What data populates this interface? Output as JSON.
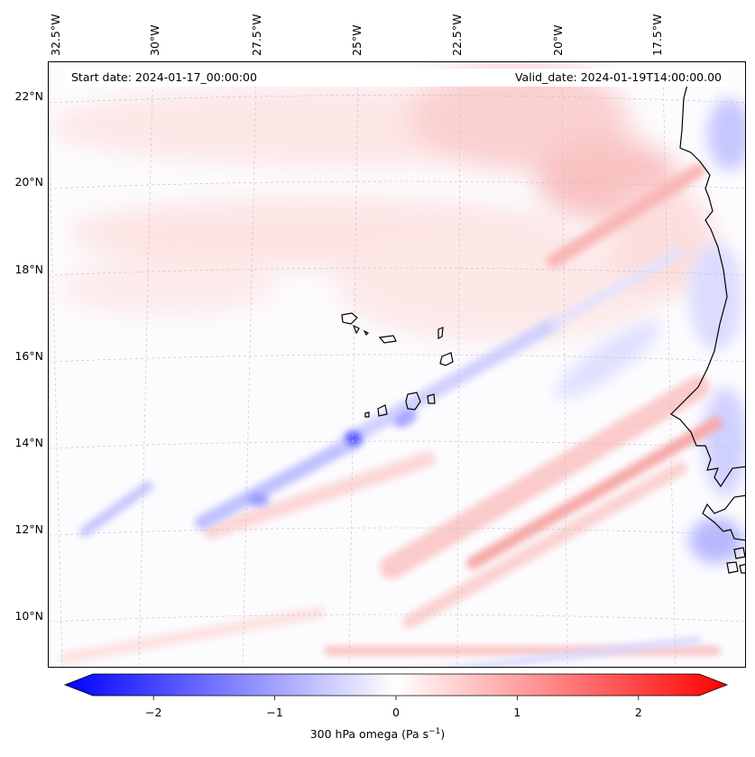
{
  "header": {
    "start_date": "Start date: 2024-01-17_00:00:00",
    "valid_date": "Valid_date: 2024-01-19T14:00:00.00"
  },
  "axes": {
    "lon_labels": [
      "32.5°W",
      "30°W",
      "27.5°W",
      "25°W",
      "22.5°W",
      "20°W",
      "17.5°W"
    ],
    "lat_labels": [
      "22°N",
      "20°N",
      "18°N",
      "16°N",
      "14°N",
      "12°N",
      "10°N"
    ]
  },
  "colorbar": {
    "ticks": [
      "−2",
      "−1",
      "0",
      "1",
      "2"
    ],
    "tick_values": [
      -2,
      -1,
      0,
      1,
      2
    ],
    "range": [
      -2.5,
      2.5
    ],
    "title_prefix": "300 hPa omega (Pa s",
    "title_exp": "−1",
    "title_suffix": ")",
    "low_color": "#0000ff",
    "mid_color": "#ffffff",
    "high_color": "#ff0000"
  },
  "chart_data": {
    "type": "heatmap",
    "variable": "300 hPa omega",
    "units": "Pa s^-1",
    "projection": "Lambert-like map, West Africa / Cape Verde region",
    "lon_range_deg": [
      -33,
      -15.5
    ],
    "lat_range_deg": [
      9,
      22.5
    ],
    "color_range": [
      -2.5,
      2.5
    ],
    "colormap": "bwr"
  }
}
